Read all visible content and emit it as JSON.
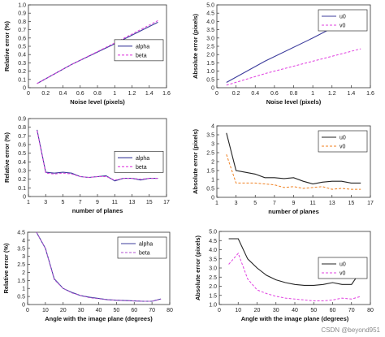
{
  "watermark": "CSDN @beyond951",
  "chart_data": [
    {
      "type": "line",
      "xlabel": "Noise level (pixels)",
      "ylabel": "Relative error (%)",
      "xlim": [
        0,
        1.6
      ],
      "ylim": [
        0,
        1
      ],
      "xticks": [
        0,
        0.2,
        0.4,
        0.6,
        0.8,
        1,
        1.2,
        1.4,
        1.6
      ],
      "xtick_labels": [
        "0",
        "0.2",
        "0.4",
        "0.6",
        "0.8",
        "1",
        "1.2",
        "1.4",
        "1.6"
      ],
      "yticks": [
        0,
        0.1,
        0.2,
        0.3,
        0.4,
        0.5,
        0.6,
        0.7,
        0.8,
        0.9,
        1
      ],
      "ytick_labels": [
        "0",
        "0.1",
        "0.2",
        "0.3",
        "0.4",
        "0.5",
        "0.6",
        "0.7",
        "0.8",
        "0.9",
        "1.0"
      ],
      "legend": "right",
      "series": [
        {
          "name": "alpha",
          "color": "#3c3c9c",
          "dash": "",
          "x": [
            0.1,
            0.5,
            1.0,
            1.5
          ],
          "y": [
            0.05,
            0.28,
            0.53,
            0.79
          ]
        },
        {
          "name": "beta",
          "color": "#e040e0",
          "dash": "3,2",
          "x": [
            0.1,
            0.5,
            1.0,
            1.5
          ],
          "y": [
            0.05,
            0.28,
            0.54,
            0.81
          ]
        }
      ]
    },
    {
      "type": "line",
      "xlabel": "Noise level (pixels)",
      "ylabel": "Absolute error (pixels)",
      "xlim": [
        0,
        1.6
      ],
      "ylim": [
        0,
        5
      ],
      "xticks": [
        0,
        0.2,
        0.4,
        0.6,
        0.8,
        1,
        1.2,
        1.4,
        1.6
      ],
      "xtick_labels": [
        "0",
        "0.2",
        "0.4",
        "0.6",
        "0.8",
        "1",
        "1.2",
        "1.4",
        "1.6"
      ],
      "yticks": [
        0,
        0.5,
        1,
        1.5,
        2,
        2.5,
        3,
        3.5,
        4,
        4.5,
        5
      ],
      "ytick_labels": [
        "0",
        "0.5",
        "1.0",
        "1.5",
        "2.0",
        "2.5",
        "3.0",
        "3.5",
        "4.0",
        "4.5",
        "5.0"
      ],
      "legend": "top-right",
      "series": [
        {
          "name": "u0",
          "color": "#3c3c9c",
          "dash": "",
          "x": [
            0.1,
            0.5,
            1.0,
            1.5
          ],
          "y": [
            0.32,
            1.6,
            3.0,
            4.5
          ]
        },
        {
          "name": "v0",
          "color": "#e040e0",
          "dash": "3,2",
          "x": [
            0.1,
            0.5,
            1.0,
            1.5
          ],
          "y": [
            0.15,
            0.85,
            1.6,
            2.35
          ]
        }
      ]
    },
    {
      "type": "line",
      "xlabel": "number of planes",
      "ylabel": "Relative error (%)",
      "xlim": [
        1,
        17
      ],
      "ylim": [
        0,
        0.9
      ],
      "xticks": [
        1,
        3,
        5,
        7,
        9,
        11,
        13,
        15,
        17
      ],
      "xtick_labels": [
        "1",
        "3",
        "5",
        "7",
        "9",
        "11",
        "13",
        "15",
        "17"
      ],
      "yticks": [
        0,
        0.1,
        0.2,
        0.3,
        0.4,
        0.5,
        0.6,
        0.7,
        0.8,
        0.9
      ],
      "ytick_labels": [
        "0",
        "0.1",
        "0.2",
        "0.3",
        "0.4",
        "0.5",
        "0.6",
        "0.7",
        "0.8",
        "0.9"
      ],
      "legend": "right",
      "series": [
        {
          "name": "alpha",
          "color": "#3c3c9c",
          "dash": "",
          "x": [
            2,
            3,
            4,
            5,
            6,
            7,
            8,
            9,
            10,
            11,
            12,
            13,
            14,
            15,
            16
          ],
          "y": [
            0.77,
            0.28,
            0.27,
            0.28,
            0.27,
            0.23,
            0.22,
            0.23,
            0.24,
            0.18,
            0.21,
            0.21,
            0.19,
            0.21,
            0.21
          ]
        },
        {
          "name": "beta",
          "color": "#e040e0",
          "dash": "3,2",
          "x": [
            2,
            3,
            4,
            5,
            6,
            7,
            8,
            9,
            10,
            11,
            12,
            13,
            14,
            15,
            16
          ],
          "y": [
            0.76,
            0.27,
            0.26,
            0.27,
            0.26,
            0.23,
            0.22,
            0.23,
            0.23,
            0.19,
            0.21,
            0.21,
            0.2,
            0.21,
            0.21
          ]
        }
      ]
    },
    {
      "type": "line",
      "xlabel": "number of planes",
      "ylabel": "Absolute error (pixels)",
      "xlim": [
        1,
        17
      ],
      "ylim": [
        0,
        4
      ],
      "xticks": [
        1,
        3,
        5,
        7,
        9,
        11,
        13,
        15,
        17
      ],
      "xtick_labels": [
        "1",
        "3",
        "5",
        "7",
        "9",
        "11",
        "13",
        "15",
        "17"
      ],
      "yticks": [
        0,
        0.5,
        1,
        1.5,
        2,
        2.5,
        3,
        3.5,
        4
      ],
      "ytick_labels": [
        "0",
        "0.5",
        "1",
        "1.5",
        "2",
        "2.5",
        "3",
        "3.5",
        "4"
      ],
      "legend": "top-right",
      "series": [
        {
          "name": "u0",
          "color": "#222222",
          "dash": "",
          "x": [
            2,
            3,
            4,
            5,
            6,
            7,
            8,
            9,
            10,
            11,
            12,
            13,
            14,
            15,
            16
          ],
          "y": [
            3.6,
            1.5,
            1.4,
            1.3,
            1.1,
            1.1,
            1.05,
            1.1,
            0.9,
            0.75,
            0.85,
            0.9,
            0.9,
            0.8,
            0.8
          ]
        },
        {
          "name": "v0",
          "color": "#f08020",
          "dash": "3,2",
          "x": [
            2,
            3,
            4,
            5,
            6,
            7,
            8,
            9,
            10,
            11,
            12,
            13,
            14,
            15,
            16
          ],
          "y": [
            2.4,
            0.8,
            0.8,
            0.8,
            0.75,
            0.7,
            0.55,
            0.6,
            0.5,
            0.55,
            0.6,
            0.45,
            0.5,
            0.45,
            0.45
          ]
        }
      ]
    },
    {
      "type": "line",
      "xlabel": "Angle with the image plane (degrees)",
      "ylabel": "Relative error (%)",
      "xlim": [
        0,
        80
      ],
      "ylim": [
        0,
        4.5
      ],
      "xticks": [
        0,
        10,
        20,
        30,
        40,
        50,
        60,
        70,
        80
      ],
      "xtick_labels": [
        "0",
        "10",
        "20",
        "30",
        "40",
        "50",
        "60",
        "70",
        "80"
      ],
      "yticks": [
        0,
        0.5,
        1,
        1.5,
        2,
        2.5,
        3,
        3.5,
        4,
        4.5
      ],
      "ytick_labels": [
        "0",
        "0.5",
        "1",
        "1.5",
        "2",
        "2.5",
        "3",
        "3.5",
        "4",
        "4.5"
      ],
      "legend": "top-right",
      "series": [
        {
          "name": "alpha",
          "color": "#3c3c9c",
          "dash": "",
          "x": [
            5,
            10,
            15,
            20,
            25,
            30,
            35,
            40,
            45,
            50,
            55,
            60,
            65,
            70,
            75
          ],
          "y": [
            4.5,
            3.5,
            1.6,
            1.0,
            0.75,
            0.55,
            0.45,
            0.38,
            0.3,
            0.27,
            0.25,
            0.22,
            0.2,
            0.2,
            0.35
          ]
        },
        {
          "name": "beta",
          "color": "#b050d0",
          "dash": "3,2",
          "x": [
            5,
            10,
            15,
            20,
            25,
            30,
            35,
            40,
            45,
            50,
            55,
            60,
            65,
            70,
            75
          ],
          "y": [
            4.5,
            3.5,
            1.55,
            1.0,
            0.72,
            0.55,
            0.42,
            0.36,
            0.3,
            0.27,
            0.24,
            0.22,
            0.2,
            0.2,
            0.33
          ]
        }
      ]
    },
    {
      "type": "line",
      "xlabel": "Angle with the image plane (degrees)",
      "ylabel": "Absolute error (pixels)",
      "xlim": [
        0,
        80
      ],
      "ylim": [
        1,
        5
      ],
      "xticks": [
        0,
        10,
        20,
        30,
        40,
        50,
        60,
        70,
        80
      ],
      "xtick_labels": [
        "0",
        "10",
        "20",
        "30",
        "40",
        "50",
        "60",
        "70",
        "80"
      ],
      "yticks": [
        1,
        1.5,
        2,
        2.5,
        3,
        3.5,
        4,
        4.5,
        5
      ],
      "ytick_labels": [
        "1.0",
        "1.5",
        "2.0",
        "2.5",
        "3.0",
        "3.5",
        "4.0",
        "4.5",
        "5.0"
      ],
      "legend": "middle-right",
      "series": [
        {
          "name": "u0",
          "color": "#222222",
          "dash": "",
          "x": [
            5,
            10,
            15,
            20,
            25,
            30,
            35,
            40,
            45,
            50,
            55,
            60,
            65,
            70,
            75
          ],
          "y": [
            4.6,
            4.6,
            3.5,
            3.0,
            2.6,
            2.35,
            2.2,
            2.1,
            2.05,
            2.05,
            2.1,
            2.2,
            2.1,
            2.1,
            2.85
          ]
        },
        {
          "name": "v0",
          "color": "#e040e0",
          "dash": "3,2",
          "x": [
            5,
            10,
            15,
            20,
            25,
            30,
            35,
            40,
            45,
            50,
            55,
            60,
            65,
            70,
            75
          ],
          "y": [
            3.2,
            3.8,
            2.4,
            1.8,
            1.6,
            1.45,
            1.35,
            1.3,
            1.25,
            1.2,
            1.2,
            1.25,
            1.35,
            1.3,
            1.45
          ]
        }
      ]
    }
  ]
}
